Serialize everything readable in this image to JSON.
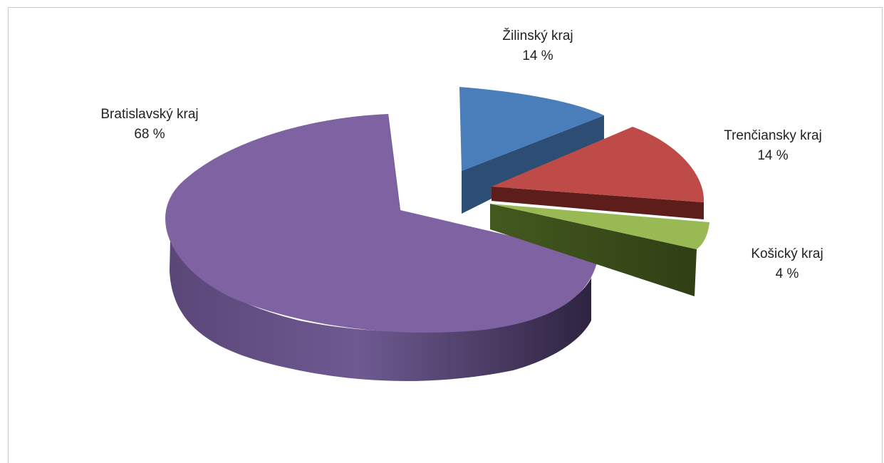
{
  "chart_data": {
    "type": "pie",
    "title": "",
    "categories": [
      "Žilinský kraj",
      "Trenčiansky kraj",
      "Košický kraj",
      "Bratislavský kraj"
    ],
    "values": [
      14,
      14,
      4,
      68
    ],
    "labels": [
      {
        "name": "Žilinský kraj",
        "value_text": "14 %"
      },
      {
        "name": "Trenčiansky kraj",
        "value_text": "14 %"
      },
      {
        "name": "Košický kraj",
        "value_text": "4 %"
      },
      {
        "name": "Bratislavský kraj",
        "value_text": "68 %"
      }
    ],
    "colors": [
      "#4a7ebb",
      "#be4b48",
      "#98b954",
      "#7e62a2"
    ],
    "side_colors": [
      "#2c4d74",
      "#5c1d1b",
      "#3b4f1c",
      "#3a2c4d"
    ],
    "style": "3d-exploded",
    "legend": "none"
  }
}
